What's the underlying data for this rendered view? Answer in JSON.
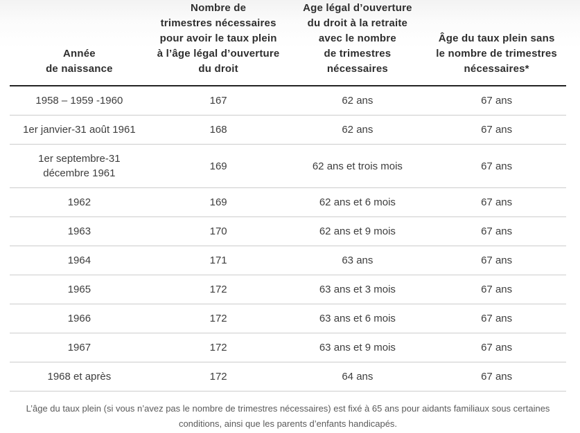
{
  "table": {
    "headers": [
      [
        "Année",
        "de naissance"
      ],
      [
        "Nombre de",
        "trimestres nécessaires",
        "pour avoir le taux plein",
        "à l’âge légal d’ouverture",
        "du droit"
      ],
      [
        "Age légal d’ouverture",
        "du droit à la retraite",
        "avec le nombre",
        "de trimestres",
        "nécessaires"
      ],
      [
        "Âge du taux plein sans",
        "le nombre de trimestres",
        "nécessaires*"
      ]
    ],
    "rows": [
      [
        "1958 – 1959 -1960",
        "167",
        "62 ans",
        "67 ans"
      ],
      [
        "1er janvier-31 août 1961",
        "168",
        "62 ans",
        "67 ans"
      ],
      [
        [
          "1er septembre-31",
          "décembre 1961"
        ],
        "169",
        "62 ans et trois mois",
        "67 ans"
      ],
      [
        "1962",
        "169",
        "62 ans et 6 mois",
        "67 ans"
      ],
      [
        "1963",
        "170",
        "62 ans et 9 mois",
        "67 ans"
      ],
      [
        "1964",
        "171",
        "63 ans",
        "67 ans"
      ],
      [
        "1965",
        "172",
        "63 ans et 3 mois",
        "67 ans"
      ],
      [
        "1966",
        "172",
        "63 ans et 6 mois",
        "67 ans"
      ],
      [
        "1967",
        "172",
        "63 ans et 9 mois",
        "67 ans"
      ],
      [
        "1968 et après",
        "172",
        "64 ans",
        "67 ans"
      ]
    ]
  },
  "footnote": {
    "lines": [
      "L’âge du taux plein (si vous n’avez pas le nombre de trimestres nécessaires) est fixé à 65 ans pour aidants familiaux sous certaines",
      "conditions, ainsi que les parents d’enfants handicapés."
    ]
  },
  "colors": {
    "header_text": "#2e2e2e",
    "body_text": "#3d3d3d",
    "rule_heavy": "#222222",
    "rule_light": "#cccccc",
    "footnote_text": "#5a5a5a",
    "top_gradient": "#f3f3f3"
  }
}
